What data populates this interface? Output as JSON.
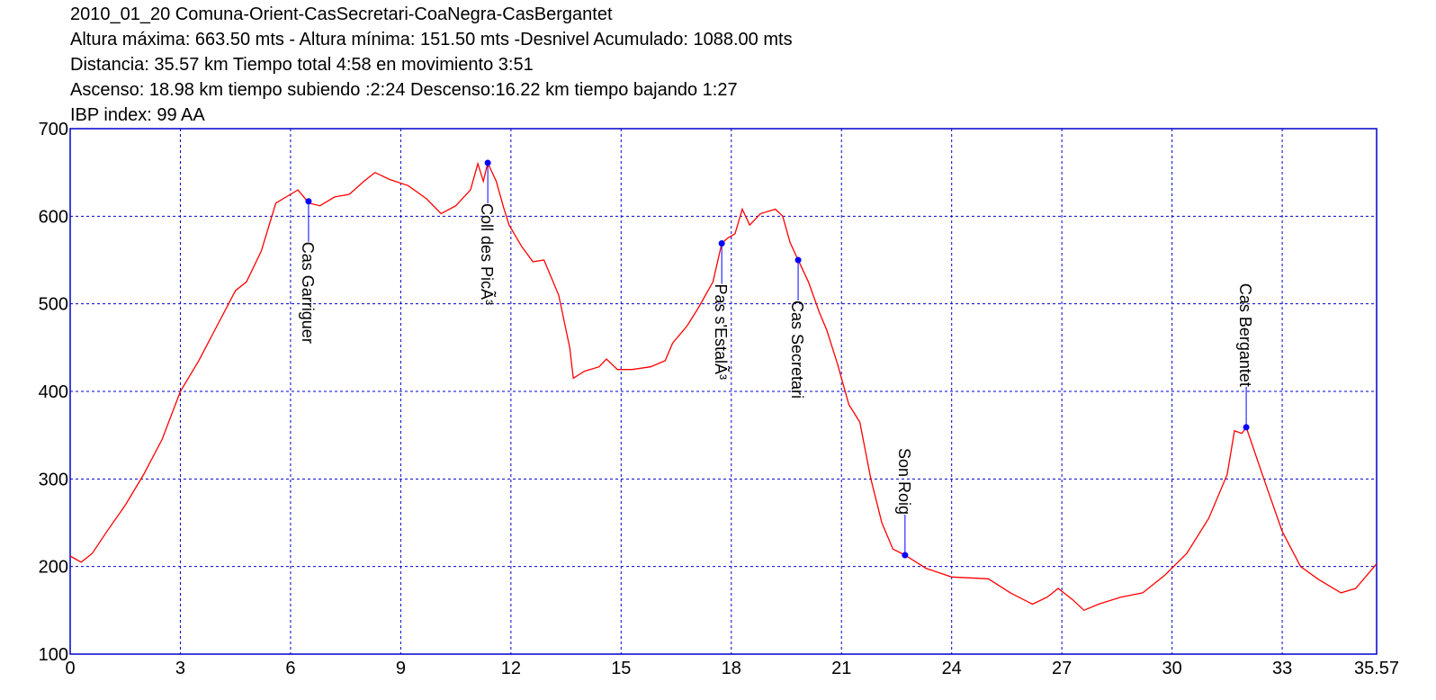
{
  "chart_data": {
    "type": "line",
    "title": "2010_01_20 Comuna-Orient-CasSecretari-CoaNegra-CasBergantet",
    "subtitles": [
      "Altura máxima: 663.50 mts - Altura mínima: 151.50 mts -Desnivel Acumulado: 1088.00 mts",
      "Distancia: 35.57 km  Tiempo total 4:58  en movimiento 3:51",
      "Ascenso: 18.98 km  tiempo subiendo :2:24  Descenso:16.22 km tiempo bajando 1:27",
      "IBP index: 99 AA"
    ],
    "color": "#ff0000",
    "grid": true,
    "grid_color": "#0000cc",
    "xlim": [
      0,
      35.57
    ],
    "xticks": [
      0,
      3,
      6,
      9,
      12,
      15,
      18,
      21,
      24,
      27,
      30,
      33,
      35.57
    ],
    "ylim": [
      100,
      700
    ],
    "yticks": [
      100,
      200,
      300,
      400,
      500,
      600,
      700
    ],
    "x": [
      0,
      0.3,
      0.6,
      1,
      1.5,
      2,
      2.5,
      3,
      3.5,
      4,
      4.5,
      4.8,
      5.2,
      5.6,
      6.0,
      6.2,
      6.5,
      6.8,
      7.2,
      7.6,
      8.0,
      8.3,
      8.7,
      9.2,
      9.7,
      10.1,
      10.5,
      10.9,
      11.1,
      11.25,
      11.37,
      11.6,
      11.8,
      11.95,
      12.3,
      12.6,
      12.9,
      13.3,
      13.6,
      13.7,
      14.0,
      14.4,
      14.6,
      14.9,
      15.3,
      15.8,
      16.2,
      16.4,
      16.8,
      17.1,
      17.5,
      17.74,
      17.9,
      18.1,
      18.3,
      18.5,
      18.8,
      19.2,
      19.4,
      19.6,
      19.82,
      20.1,
      20.4,
      20.6,
      20.9,
      21.2,
      21.5,
      21.8,
      22.1,
      22.4,
      22.73,
      23.3,
      24,
      25,
      25.6,
      26.2,
      26.6,
      26.9,
      27.3,
      27.6,
      28,
      28.6,
      29.2,
      29.8,
      30.4,
      31,
      31.5,
      31.7,
      31.9,
      32.02,
      32.5,
      33,
      33.5,
      34,
      34.6,
      35,
      35.57
    ],
    "values": [
      212,
      205,
      215,
      240,
      270,
      305,
      345,
      400,
      435,
      475,
      515,
      525,
      560,
      615,
      625,
      630,
      615,
      612,
      622,
      625,
      640,
      650,
      642,
      635,
      620,
      603,
      612,
      630,
      660,
      640,
      661,
      640,
      610,
      590,
      565,
      548,
      550,
      510,
      450,
      415,
      423,
      428,
      437,
      425,
      425,
      428,
      435,
      455,
      475,
      495,
      525,
      569,
      575,
      580,
      608,
      590,
      603,
      608,
      600,
      570,
      550,
      525,
      490,
      470,
      430,
      385,
      365,
      300,
      250,
      220,
      213,
      198,
      188,
      186,
      170,
      157,
      165,
      175,
      162,
      150,
      157,
      165,
      170,
      190,
      215,
      255,
      305,
      355,
      352,
      359,
      300,
      240,
      200,
      185,
      170,
      175,
      203
    ],
    "waypoints": [
      {
        "label": "Cas Garriguer",
        "x": 6.49,
        "y": 617,
        "position": "below"
      },
      {
        "label": "Coll des PicÃ³",
        "x": 11.37,
        "y": 661,
        "position": "below"
      },
      {
        "label": "Pas s'EstalÃ³",
        "x": 17.74,
        "y": 569,
        "position": "below"
      },
      {
        "label": "Cas Secretari",
        "x": 19.82,
        "y": 550,
        "position": "below"
      },
      {
        "label": "Son Roig",
        "x": 22.73,
        "y": 213,
        "position": "above"
      },
      {
        "label": "Cas Bergantet",
        "x": 32.02,
        "y": 359,
        "position": "above"
      }
    ],
    "waypoint_color": "#0000ff"
  }
}
